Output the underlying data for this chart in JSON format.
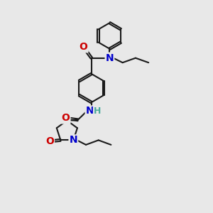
{
  "background_color": "#e8e8e8",
  "bond_color": "#1a1a1a",
  "bond_width": 1.5,
  "atom_colors": {
    "N": "#0000cc",
    "O": "#cc0000",
    "H": "#4aaa9a"
  },
  "font_size": 9
}
